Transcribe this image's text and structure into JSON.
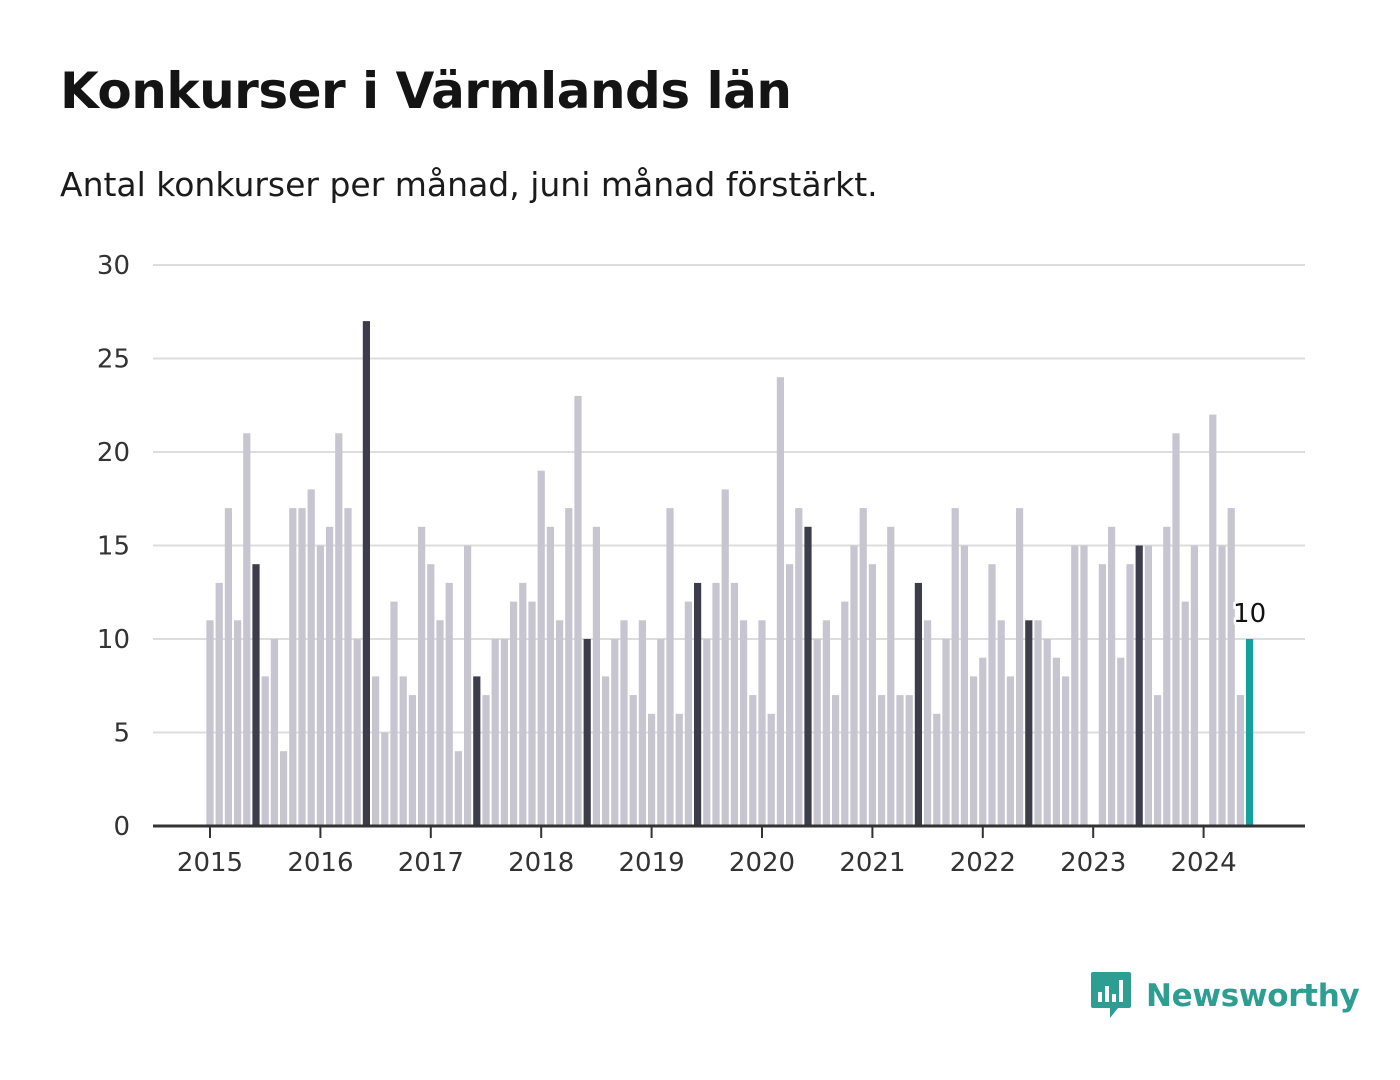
{
  "title": "Konkurser i Värmlands län",
  "subtitle": "Antal konkurser per månad, juni månad förstärkt.",
  "brand": {
    "name": "Newsworthy",
    "icon": "newsworthy-logo-icon"
  },
  "colors": {
    "normal": "#c6c5d0",
    "highlight": "#3d3c4b",
    "current": "#13a19b",
    "grid": "#dddddd",
    "axis": "#333333"
  },
  "chart_data": {
    "type": "bar",
    "title": "Konkurser i Värmlands län",
    "subtitle": "Antal konkurser per månad, juni månad förstärkt.",
    "xlabel": "",
    "ylabel": "",
    "ylim": [
      0,
      30
    ],
    "yticks": [
      0,
      5,
      10,
      15,
      20,
      25,
      30
    ],
    "xticks": [
      "2015",
      "2016",
      "2017",
      "2018",
      "2019",
      "2020",
      "2021",
      "2022",
      "2023",
      "2024"
    ],
    "start": "2015-01",
    "end": "2024-06",
    "highlight_month": "juni",
    "grid": true,
    "values": [
      11,
      13,
      17,
      11,
      21,
      14,
      8,
      10,
      4,
      17,
      17,
      18,
      15,
      16,
      21,
      17,
      10,
      27,
      8,
      5,
      12,
      8,
      7,
      16,
      14,
      11,
      13,
      4,
      15,
      8,
      7,
      10,
      10,
      12,
      13,
      12,
      19,
      16,
      11,
      17,
      23,
      10,
      16,
      8,
      10,
      11,
      7,
      11,
      6,
      10,
      17,
      6,
      12,
      13,
      10,
      13,
      18,
      13,
      11,
      7,
      11,
      6,
      24,
      14,
      17,
      16,
      10,
      11,
      7,
      12,
      15,
      17,
      14,
      7,
      16,
      7,
      7,
      13,
      11,
      6,
      10,
      17,
      15,
      8,
      9,
      14,
      11,
      8,
      17,
      11,
      11,
      10,
      9,
      8,
      15,
      15,
      0,
      14,
      16,
      9,
      14,
      15,
      15,
      7,
      16,
      21,
      12,
      15,
      0,
      22,
      15,
      17,
      7,
      10
    ],
    "annotations": [
      {
        "month": "2024-06",
        "value": 10,
        "label": "10"
      }
    ]
  }
}
